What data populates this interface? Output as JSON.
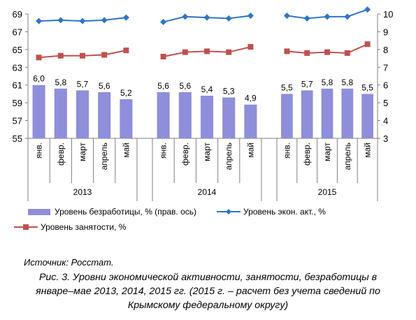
{
  "chart_data": {
    "type": "bar",
    "groups": [
      {
        "year": "2013",
        "months": [
          "янв.",
          "февр.",
          "март",
          "апрель",
          "май"
        ]
      },
      {
        "year": "2014",
        "months": [
          "янв.",
          "февр.",
          "март",
          "апрель",
          "май"
        ]
      },
      {
        "year": "2015",
        "months": [
          "янв.",
          "февр.",
          "март",
          "апрель",
          "май"
        ]
      }
    ],
    "series": [
      {
        "name": "Уровень безработицы, % (прав. ось)",
        "kind": "bar",
        "axis": "right",
        "color": "#8E8EDB",
        "values": [
          [
            6.0,
            5.8,
            5.7,
            5.6,
            5.2
          ],
          [
            5.6,
            5.6,
            5.4,
            5.3,
            4.9
          ],
          [
            5.5,
            5.7,
            5.8,
            5.8,
            5.5
          ]
        ],
        "labels": [
          [
            "6,0",
            "5,8",
            "5,7",
            "5,6",
            "5,2"
          ],
          [
            "5,6",
            "5,6",
            "5,4",
            "5,3",
            "4,9"
          ],
          [
            "5,5",
            "5,7",
            "5,8",
            "5,8",
            "5,5"
          ]
        ]
      },
      {
        "name": "Уровень экон. акт., %",
        "kind": "line",
        "marker": "diamond",
        "axis": "left",
        "color": "#2E75C9",
        "values": [
          [
            68.2,
            68.3,
            68.2,
            68.3,
            68.6
          ],
          [
            68.1,
            68.7,
            68.6,
            68.5,
            68.8
          ],
          [
            68.8,
            68.5,
            68.7,
            68.7,
            69.5
          ]
        ]
      },
      {
        "name": "Уровень занятости, %",
        "kind": "line",
        "marker": "square",
        "axis": "left",
        "color": "#C0504D",
        "values": [
          [
            64.1,
            64.3,
            64.3,
            64.4,
            64.9
          ],
          [
            64.2,
            64.7,
            64.8,
            64.7,
            65.3
          ],
          [
            64.8,
            64.6,
            64.7,
            64.6,
            65.6
          ]
        ]
      }
    ],
    "y_left": {
      "min": 55,
      "max": 69,
      "ticks": [
        55,
        57,
        59,
        61,
        63,
        65,
        67,
        69
      ]
    },
    "y_right": {
      "min": 3,
      "max": 10,
      "ticks": [
        3,
        4,
        5,
        6,
        7,
        8,
        9,
        10
      ]
    },
    "grid": false,
    "legend_position": "bottom"
  },
  "source": {
    "label": "Источник",
    "value": ": Росстат."
  },
  "caption": {
    "lines": [
      "Рис. 3. Уровни экономической активности, занятости, безработицы в",
      "январе–мае 2013, 2014, 2015 гг. (2015 г. – расчет без учета сведений по",
      "Крымскому федеральному округу)"
    ]
  }
}
